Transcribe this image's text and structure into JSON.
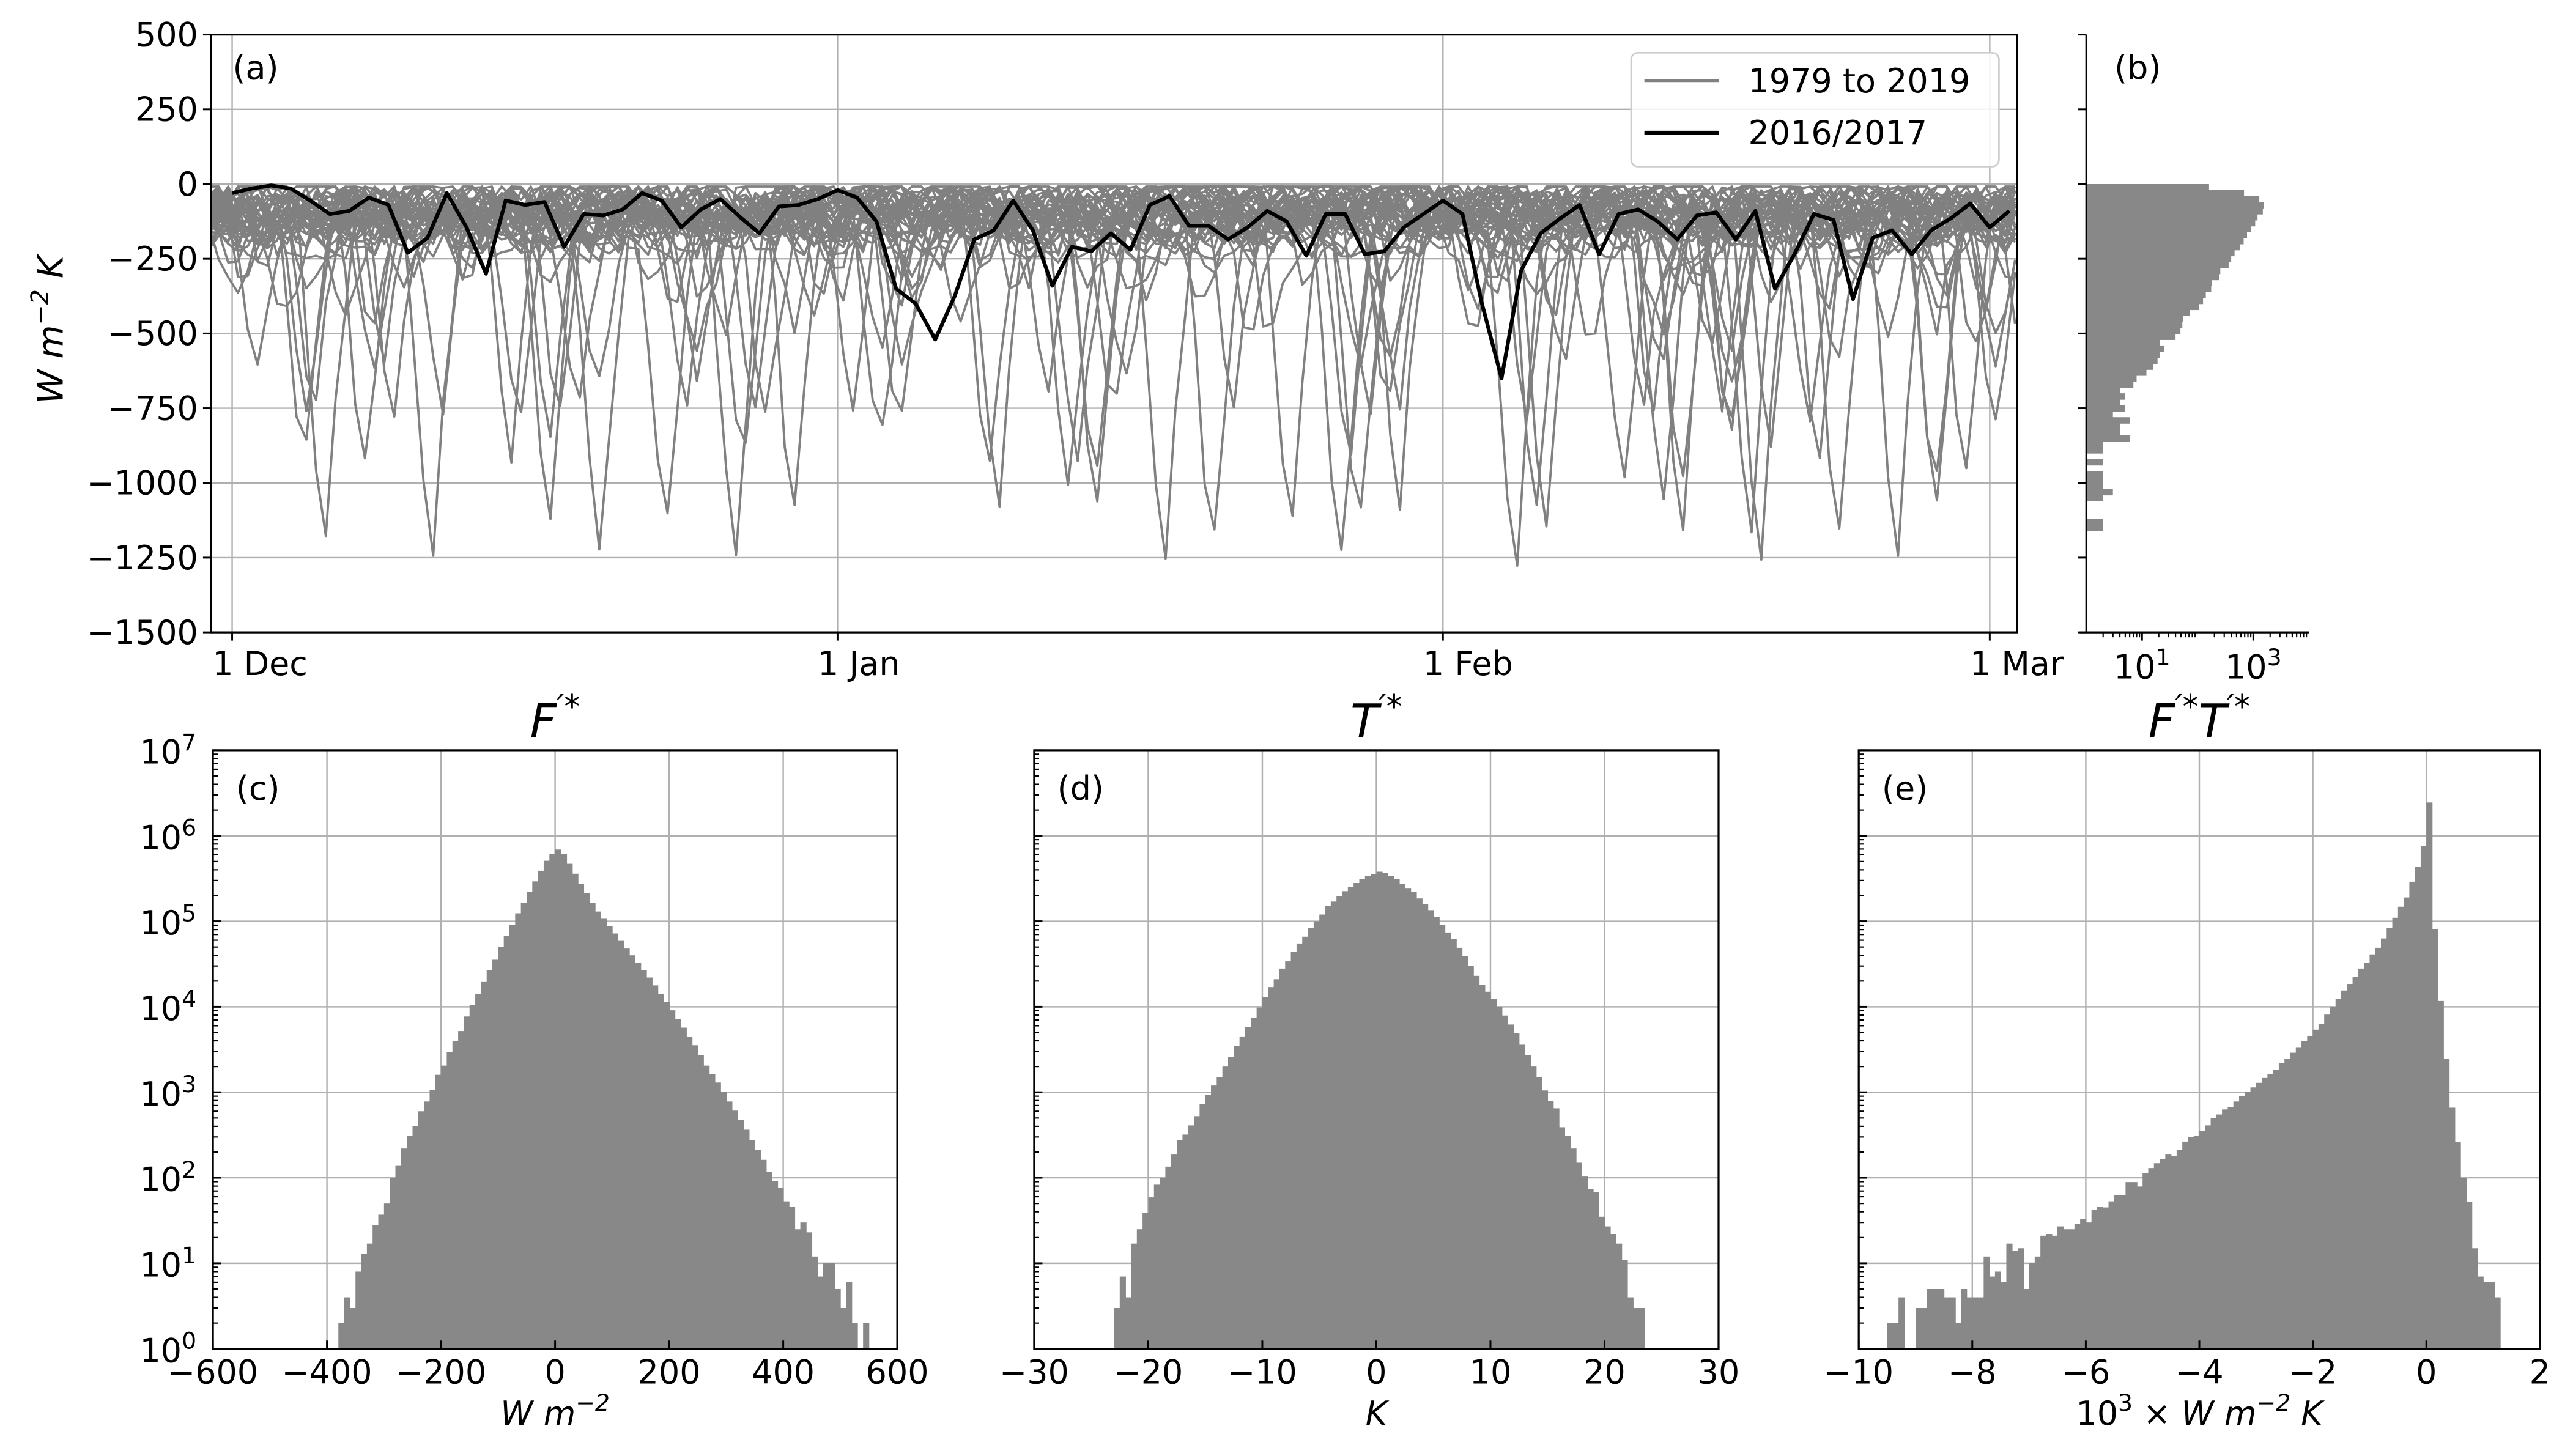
{
  "figure": {
    "background": "#ffffff",
    "bar_color": "#888888",
    "grid_color": "#b0b0b0",
    "spine_color": "#000000"
  },
  "chart_data": [
    {
      "panel": "a",
      "type": "line",
      "panel_label": "(a)",
      "ylabel": [
        {
          "t": "W m",
          "italic": true
        },
        {
          "t": "−2",
          "sup": true,
          "italic": true
        },
        {
          "t": " K",
          "italic": true
        }
      ],
      "ylim": [
        -1500,
        500
      ],
      "yticks": [
        500,
        250,
        0,
        -250,
        -500,
        -750,
        -1000,
        -1250,
        -1500
      ],
      "yticklabels": [
        "500",
        "250",
        "0",
        "−250",
        "−500",
        "−750",
        "−1000",
        "−1250",
        "−1500"
      ],
      "xticks": [
        "1 Dec",
        "1 Jan",
        "1 Feb",
        "1 Mar"
      ],
      "xticklabels": [
        "1 Dec",
        "1 Jan",
        "1 Feb",
        "1 Mar"
      ],
      "grid": true,
      "legend": {
        "position": "upper right",
        "entries": [
          {
            "label": "1979 to 2019",
            "color": "#808080"
          },
          {
            "label": "2016/2017",
            "color": "#000000"
          }
        ]
      },
      "series": [
        {
          "name": "1979 to 2019",
          "color": "#808080"
        },
        {
          "name": "2016/2017",
          "color": "#000000",
          "dates": [
            "1 Dec",
            "2 Dec",
            "3 Dec",
            "4 Dec",
            "5 Dec",
            "6 Dec",
            "7 Dec",
            "8 Dec",
            "9 Dec",
            "10 Dec",
            "11 Dec",
            "12 Dec",
            "13 Dec",
            "14 Dec",
            "15 Dec",
            "16 Dec",
            "17 Dec",
            "18 Dec",
            "19 Dec",
            "20 Dec",
            "21 Dec",
            "22 Dec",
            "23 Dec",
            "24 Dec",
            "25 Dec",
            "26 Dec",
            "27 Dec",
            "28 Dec",
            "29 Dec",
            "30 Dec",
            "31 Dec",
            "1 Jan",
            "2 Jan",
            "3 Jan",
            "4 Jan",
            "5 Jan",
            "6 Jan",
            "7 Jan",
            "8 Jan",
            "9 Jan",
            "10 Jan",
            "11 Jan",
            "12 Jan",
            "13 Jan",
            "14 Jan",
            "15 Jan",
            "16 Jan",
            "17 Jan",
            "18 Jan",
            "19 Jan",
            "20 Jan",
            "21 Jan",
            "22 Jan",
            "23 Jan",
            "24 Jan",
            "25 Jan",
            "26 Jan",
            "27 Jan",
            "28 Jan",
            "29 Jan",
            "30 Jan",
            "31 Jan",
            "1 Feb",
            "2 Feb",
            "3 Feb",
            "4 Feb",
            "5 Feb",
            "6 Feb",
            "7 Feb",
            "8 Feb",
            "9 Feb",
            "10 Feb",
            "11 Feb",
            "12 Feb",
            "13 Feb",
            "14 Feb",
            "15 Feb",
            "16 Feb",
            "17 Feb",
            "18 Feb",
            "19 Feb",
            "20 Feb",
            "21 Feb",
            "22 Feb",
            "23 Feb",
            "24 Feb",
            "25 Feb",
            "26 Feb",
            "27 Feb",
            "28 Feb",
            "1 Mar",
            "2 Mar"
          ],
          "values": [
            -30,
            -15,
            -5,
            -15,
            -55,
            -100,
            -90,
            -45,
            -70,
            -230,
            -180,
            -30,
            -145,
            -300,
            -55,
            -70,
            -60,
            -210,
            -100,
            -105,
            -85,
            -30,
            -55,
            -145,
            -85,
            -50,
            -110,
            -165,
            -75,
            -70,
            -50,
            -20,
            -45,
            -125,
            -350,
            -400,
            -520,
            -375,
            -185,
            -155,
            -55,
            -155,
            -340,
            -210,
            -225,
            -165,
            -220,
            -70,
            -40,
            -140,
            -140,
            -185,
            -145,
            -90,
            -125,
            -240,
            -100,
            -100,
            -235,
            -225,
            -145,
            -100,
            -55,
            -100,
            -400,
            -650,
            -290,
            -165,
            -115,
            -70,
            -235,
            -100,
            -85,
            -125,
            -185,
            -105,
            -95,
            -185,
            -90,
            -350,
            -235,
            -100,
            -120,
            -385,
            -180,
            -155,
            -235,
            -155,
            -115,
            -65,
            -145,
            -90
          ]
        }
      ]
    },
    {
      "panel": "b",
      "type": "bar",
      "orientation": "horizontal",
      "panel_label": "(b)",
      "xscale": "log",
      "xlim": [
        1,
        10000
      ],
      "xticks": [
        10,
        1000
      ],
      "xticklabels": [
        {
          "base": "10",
          "exp": "1"
        },
        {
          "base": "10",
          "exp": "3"
        }
      ],
      "ylim": [
        -1500,
        500
      ],
      "yticks": [
        500,
        250,
        0,
        -250,
        -500,
        -750,
        -1000,
        -1250,
        -1500
      ],
      "bin_start": -1160,
      "bin_width": 20,
      "counts": [
        2,
        2,
        0,
        0,
        0,
        2,
        3,
        2,
        2,
        2,
        0,
        2,
        0,
        2,
        2,
        6,
        4,
        4,
        6,
        3,
        5,
        4,
        5,
        4,
        7,
        8,
        12,
        16,
        19,
        21,
        25,
        21,
        40,
        49,
        53,
        55,
        72,
        107,
        125,
        140,
        175,
        180,
        245,
        255,
        360,
        400,
        460,
        570,
        670,
        770,
        920,
        1080,
        1190,
        1480,
        1530,
        1280,
        680,
        160
      ]
    },
    {
      "panel": "c",
      "type": "bar",
      "panel_label": "(c)",
      "title": [
        {
          "t": "F",
          "italic": true
        },
        {
          "t": "′*",
          "sup": true,
          "italic": true
        }
      ],
      "xlabel": [
        {
          "t": "W m",
          "italic": true
        },
        {
          "t": "−2",
          "sup": true,
          "italic": true
        }
      ],
      "xlim": [
        -600,
        600
      ],
      "xticks": [
        -600,
        -400,
        -200,
        0,
        200,
        400,
        600
      ],
      "xticklabels": [
        "−600",
        "−400",
        "−200",
        "0",
        "200",
        "400",
        "600"
      ],
      "yscale": "log",
      "ylim": [
        1,
        10000000
      ],
      "yticklabels": [
        {
          "base": "10",
          "exp": "0"
        },
        {
          "base": "10",
          "exp": "1"
        },
        {
          "base": "10",
          "exp": "2"
        },
        {
          "base": "10",
          "exp": "3"
        },
        {
          "base": "10",
          "exp": "4"
        },
        {
          "base": "10",
          "exp": "5"
        },
        {
          "base": "10",
          "exp": "6"
        },
        {
          "base": "10",
          "exp": "7"
        }
      ],
      "grid": true,
      "bin_start": -380,
      "bin_width": 10,
      "counts": [
        2,
        4,
        3,
        8,
        13,
        17,
        28,
        37,
        50,
        100,
        140,
        220,
        310,
        400,
        600,
        780,
        1070,
        1600,
        2050,
        2950,
        4000,
        5200,
        7700,
        10500,
        14200,
        19500,
        27000,
        35500,
        50000,
        68000,
        90000,
        124000,
        163000,
        220000,
        293000,
        390000,
        510000,
        610000,
        690000,
        610000,
        470000,
        360000,
        273000,
        213000,
        163000,
        130000,
        107000,
        88000,
        72000,
        59000,
        48000,
        40000,
        32500,
        27000,
        22000,
        17800,
        14200,
        11300,
        9100,
        7200,
        5700,
        4450,
        3550,
        2700,
        2050,
        1620,
        1300,
        1020,
        780,
        610,
        475,
        365,
        275,
        212,
        162,
        118,
        91,
        76,
        53,
        46,
        25,
        30,
        23,
        12,
        7,
        10,
        10,
        5,
        3,
        6,
        2,
        0,
        2
      ]
    },
    {
      "panel": "d",
      "type": "bar",
      "panel_label": "(d)",
      "title": [
        {
          "t": "T",
          "italic": true
        },
        {
          "t": "′*",
          "sup": true,
          "italic": true
        }
      ],
      "xlabel": [
        {
          "t": "K",
          "italic": true
        }
      ],
      "xlim": [
        -30,
        30
      ],
      "xticks": [
        -30,
        -20,
        -10,
        0,
        10,
        20,
        30
      ],
      "xticklabels": [
        "−30",
        "−20",
        "−10",
        "0",
        "10",
        "20",
        "30"
      ],
      "yscale": "log",
      "ylim": [
        1,
        10000000
      ],
      "grid": true,
      "bin_start": -23,
      "bin_width": 0.5,
      "counts": [
        3,
        7,
        4,
        17,
        25,
        39,
        59,
        83,
        100,
        135,
        190,
        275,
        320,
        410,
        525,
        725,
        930,
        1200,
        1500,
        2000,
        2600,
        3500,
        4500,
        5800,
        7400,
        9800,
        13000,
        17000,
        21000,
        28000,
        34000,
        44000,
        55000,
        66000,
        83000,
        100000,
        120000,
        150000,
        170000,
        195000,
        225000,
        250000,
        280000,
        310000,
        340000,
        355000,
        380000,
        365000,
        340000,
        310000,
        275000,
        245000,
        220000,
        185000,
        160000,
        135000,
        112000,
        91000,
        74000,
        62000,
        49000,
        39000,
        30000,
        23000,
        18000,
        15000,
        12300,
        10000,
        7900,
        6200,
        4900,
        3600,
        2700,
        2000,
        1500,
        1050,
        790,
        650,
        390,
        310,
        220,
        150,
        105,
        74,
        68,
        35,
        27,
        22,
        17,
        11,
        4,
        3,
        3
      ]
    },
    {
      "panel": "e",
      "type": "bar",
      "panel_label": "(e)",
      "title": [
        {
          "t": "F",
          "italic": true
        },
        {
          "t": "′*",
          "sup": true,
          "italic": true
        },
        {
          "t": "T",
          "italic": true
        },
        {
          "t": "′*",
          "sup": true,
          "italic": true
        }
      ],
      "xlabel": [
        {
          "t": "10"
        },
        {
          "t": "3",
          "sup": true
        },
        {
          "t": " × "
        },
        {
          "t": "W m",
          "italic": true
        },
        {
          "t": "−2",
          "sup": true,
          "italic": true
        },
        {
          "t": " K",
          "italic": true
        }
      ],
      "xlim": [
        -10,
        2
      ],
      "xticks": [
        -10,
        -8,
        -6,
        -4,
        -2,
        0,
        2
      ],
      "xticklabels": [
        "−10",
        "−8",
        "−6",
        "−4",
        "−2",
        "0",
        "2"
      ],
      "yscale": "log",
      "ylim": [
        1,
        10000000
      ],
      "grid": true,
      "bin_start": -9.5,
      "bin_width": 0.1,
      "counts": [
        2,
        2,
        4,
        0,
        0,
        3,
        3,
        5,
        5,
        5,
        4,
        4,
        2,
        5,
        4,
        4,
        4,
        12,
        7,
        8,
        6,
        17,
        14,
        15,
        5,
        10,
        12,
        21,
        22,
        21,
        27,
        25,
        25,
        29,
        33,
        30,
        42,
        46,
        45,
        53,
        63,
        63,
        89,
        89,
        79,
        113,
        130,
        148,
        165,
        190,
        180,
        210,
        265,
        297,
        310,
        355,
        410,
        500,
        550,
        630,
        675,
        780,
        910,
        1020,
        1140,
        1290,
        1470,
        1630,
        1830,
        2200,
        2470,
        2900,
        3370,
        4000,
        4570,
        5400,
        6300,
        8100,
        10000,
        12300,
        15500,
        18500,
        22400,
        28000,
        32500,
        41000,
        49000,
        63000,
        83000,
        110000,
        148000,
        190000,
        290000,
        430000,
        760000,
        2450000,
        81000,
        11700,
        2470,
        660,
        260,
        100,
        52,
        15,
        7,
        6,
        6,
        4
      ]
    }
  ]
}
